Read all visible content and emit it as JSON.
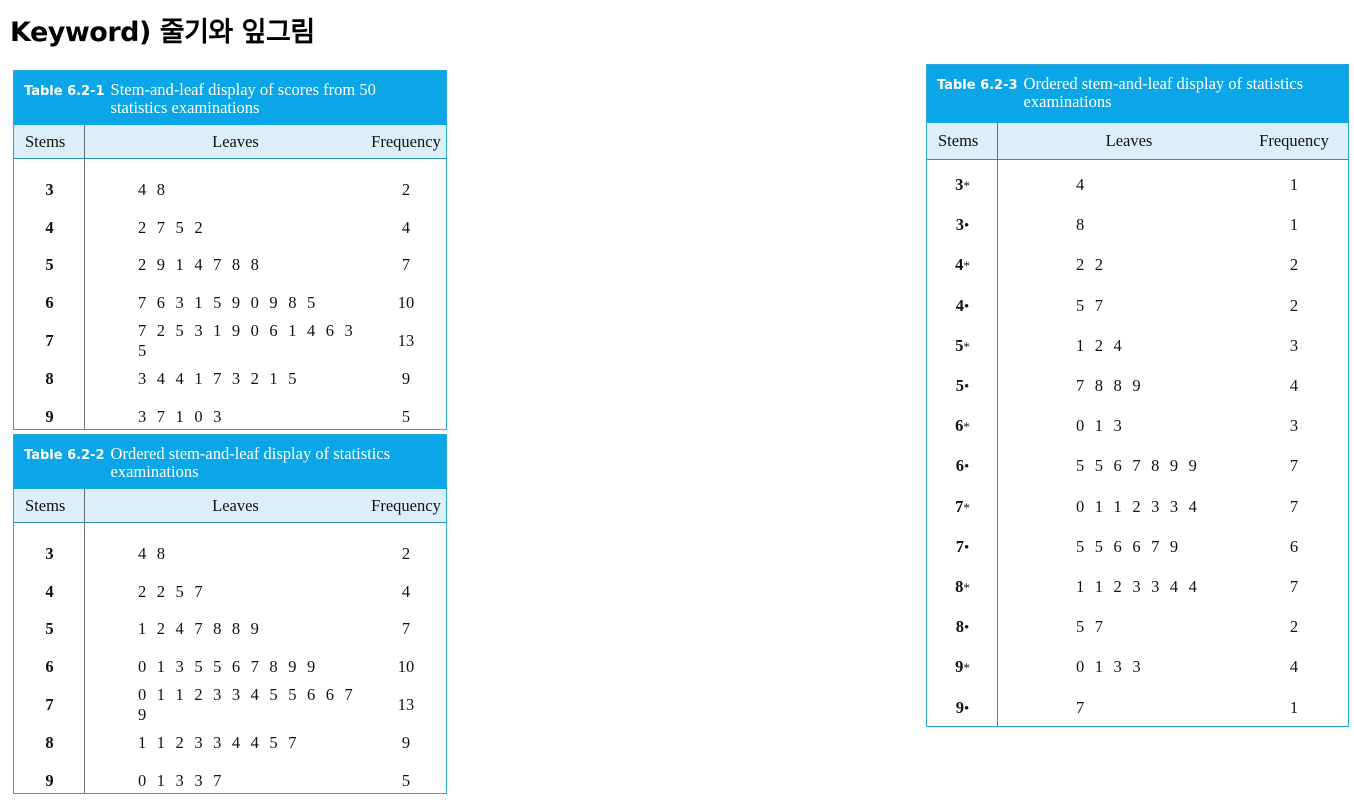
{
  "page": {
    "title": "Keyword) 줄기와 잎그림"
  },
  "tables": [
    {
      "number": "Table 6.2-1",
      "caption": "Stem-and-leaf display of scores from 50 statistics examinations",
      "headers": {
        "stems": "Stems",
        "leaves": "Leaves",
        "frequency": "Frequency"
      },
      "rows": [
        {
          "stem": "3",
          "leaves": "4 8",
          "frequency": "2"
        },
        {
          "stem": "4",
          "leaves": "2 7 5 2",
          "frequency": "4"
        },
        {
          "stem": "5",
          "leaves": "2 9 1 4 7 8 8",
          "frequency": "7"
        },
        {
          "stem": "6",
          "leaves": "7 6 3 1 5 9 0 9 8 5",
          "frequency": "10"
        },
        {
          "stem": "7",
          "leaves": "7 2 5 3 1 9 0 6 1 4 6 3 5",
          "frequency": "13"
        },
        {
          "stem": "8",
          "leaves": "3 4 4 1 7 3 2 1 5",
          "frequency": "9"
        },
        {
          "stem": "9",
          "leaves": "3 7 1 0 3",
          "frequency": "5"
        }
      ]
    },
    {
      "number": "Table 6.2-2",
      "caption": "Ordered stem-and-leaf display of statistics examinations",
      "headers": {
        "stems": "Stems",
        "leaves": "Leaves",
        "frequency": "Frequency"
      },
      "rows": [
        {
          "stem": "3",
          "leaves": "4 8",
          "frequency": "2"
        },
        {
          "stem": "4",
          "leaves": "2 2 5 7",
          "frequency": "4"
        },
        {
          "stem": "5",
          "leaves": "1 2 4 7 8 8 9",
          "frequency": "7"
        },
        {
          "stem": "6",
          "leaves": "0 1 3 5 5 6 7 8 9 9",
          "frequency": "10"
        },
        {
          "stem": "7",
          "leaves": "0 1 1 2 3 3 4 5 5 6 6 7 9",
          "frequency": "13"
        },
        {
          "stem": "8",
          "leaves": "1 1 2 3 3 4 4 5 7",
          "frequency": "9"
        },
        {
          "stem": "9",
          "leaves": "0 1 3 3 7",
          "frequency": "5"
        }
      ]
    },
    {
      "number": "Table 6.2-3",
      "caption": "Ordered stem-and-leaf display of statistics examinations",
      "headers": {
        "stems": "Stems",
        "leaves": "Leaves",
        "frequency": "Frequency"
      },
      "rows": [
        {
          "stem": "3",
          "symbol": "*",
          "leaves": "4",
          "frequency": "1"
        },
        {
          "stem": "3",
          "symbol": "•",
          "leaves": "8",
          "frequency": "1"
        },
        {
          "stem": "4",
          "symbol": "*",
          "leaves": "2 2",
          "frequency": "2"
        },
        {
          "stem": "4",
          "symbol": "•",
          "leaves": "5 7",
          "frequency": "2"
        },
        {
          "stem": "5",
          "symbol": "*",
          "leaves": "1 2 4",
          "frequency": "3"
        },
        {
          "stem": "5",
          "symbol": "•",
          "leaves": "7 8 8 9",
          "frequency": "4"
        },
        {
          "stem": "6",
          "symbol": "*",
          "leaves": "0 1 3",
          "frequency": "3"
        },
        {
          "stem": "6",
          "symbol": "•",
          "leaves": "5 5 6 7 8 9 9",
          "frequency": "7"
        },
        {
          "stem": "7",
          "symbol": "*",
          "leaves": "0 1 1 2 3 3 4",
          "frequency": "7"
        },
        {
          "stem": "7",
          "symbol": "•",
          "leaves": "5 5 6 6 7 9",
          "frequency": "6"
        },
        {
          "stem": "8",
          "symbol": "*",
          "leaves": "1 1 2 3 3 4 4",
          "frequency": "7"
        },
        {
          "stem": "8",
          "symbol": "•",
          "leaves": "5 7",
          "frequency": "2"
        },
        {
          "stem": "9",
          "symbol": "*",
          "leaves": "0 1 3 3",
          "frequency": "4"
        },
        {
          "stem": "9",
          "symbol": "•",
          "leaves": "7",
          "frequency": "1"
        }
      ]
    }
  ],
  "colors": {
    "caption_bg": "#0aa6e8",
    "header_bg": "#dceefa",
    "border": "#29a6dc"
  }
}
